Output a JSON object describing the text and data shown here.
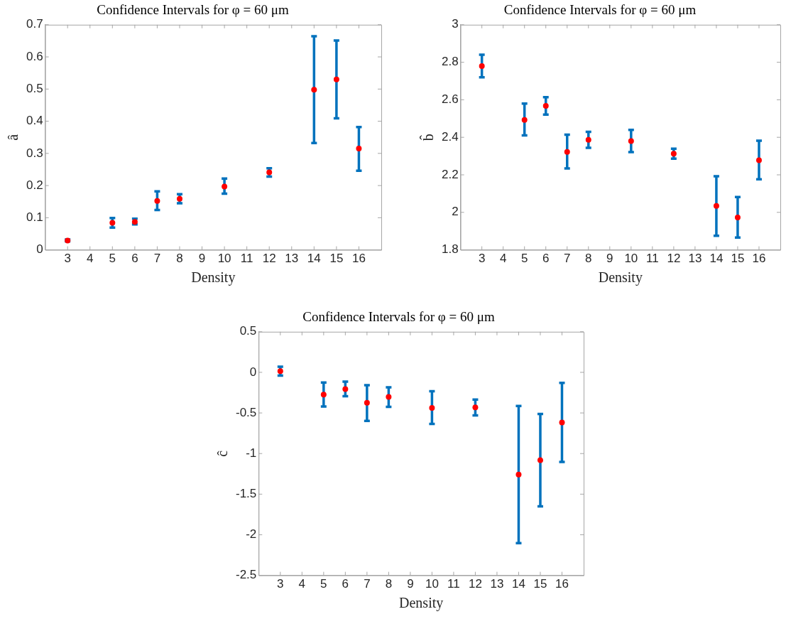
{
  "chart_data": [
    {
      "type": "scatter",
      "title": "Confidence Intervals for φ = 60 μm",
      "xlabel": "Density",
      "ylabel": "â",
      "xlim": [
        2,
        17
      ],
      "xticks": [
        3,
        4,
        5,
        6,
        7,
        8,
        9,
        10,
        11,
        12,
        13,
        14,
        15,
        16
      ],
      "ylim": [
        0,
        0.7
      ],
      "yticks": [
        0,
        0.1,
        0.2,
        0.3,
        0.4,
        0.5,
        0.6,
        0.7
      ],
      "grid": false,
      "legend": false,
      "marker": "circle",
      "series": [
        {
          "color": "#ff0000",
          "x": [
            3,
            5,
            6,
            7,
            8,
            10,
            12,
            14,
            15,
            16
          ],
          "values": [
            0.029,
            0.084,
            0.087,
            0.152,
            0.159,
            0.197,
            0.241,
            0.498,
            0.53,
            0.315
          ],
          "errors": [
            [
              0.027,
              0.032
            ],
            [
              0.069,
              0.099
            ],
            [
              0.079,
              0.097
            ],
            [
              0.124,
              0.182
            ],
            [
              0.145,
              0.173
            ],
            [
              0.175,
              0.222
            ],
            [
              0.228,
              0.254
            ],
            [
              0.332,
              0.664
            ],
            [
              0.409,
              0.651
            ],
            [
              0.246,
              0.382
            ]
          ]
        }
      ]
    },
    {
      "type": "scatter",
      "title": "Confidence Intervals for φ = 60 μm",
      "xlabel": "Density",
      "ylabel": "b̂",
      "xlim": [
        2,
        17
      ],
      "xticks": [
        3,
        4,
        5,
        6,
        7,
        8,
        9,
        10,
        11,
        12,
        13,
        14,
        15,
        16
      ],
      "ylim": [
        1.8,
        3
      ],
      "yticks": [
        1.8,
        2,
        2.2,
        2.4,
        2.6,
        2.8,
        3
      ],
      "grid": false,
      "legend": false,
      "marker": "circle",
      "series": [
        {
          "color": "#ff0000",
          "x": [
            3,
            5,
            6,
            7,
            8,
            10,
            12,
            14,
            15,
            16
          ],
          "values": [
            2.78,
            2.493,
            2.567,
            2.322,
            2.387,
            2.38,
            2.313,
            2.034,
            1.973,
            2.278
          ],
          "errors": [
            [
              2.72,
              2.84
            ],
            [
              2.41,
              2.58
            ],
            [
              2.521,
              2.614
            ],
            [
              2.234,
              2.414
            ],
            [
              2.344,
              2.429
            ],
            [
              2.321,
              2.44
            ],
            [
              2.286,
              2.339
            ],
            [
              1.875,
              2.192
            ],
            [
              1.866,
              2.082
            ],
            [
              2.176,
              2.382
            ]
          ]
        }
      ]
    },
    {
      "type": "scatter",
      "title": "Confidence Intervals for φ = 60 μm",
      "xlabel": "Density",
      "ylabel": "ĉ",
      "xlim": [
        2,
        17
      ],
      "xticks": [
        3,
        4,
        5,
        6,
        7,
        8,
        9,
        10,
        11,
        12,
        13,
        14,
        15,
        16
      ],
      "ylim": [
        -2.5,
        0.5
      ],
      "yticks": [
        -2.5,
        -2,
        -1.5,
        -1,
        -0.5,
        0,
        0.5
      ],
      "grid": false,
      "legend": false,
      "marker": "circle",
      "series": [
        {
          "color": "#ff0000",
          "x": [
            3,
            5,
            6,
            7,
            8,
            10,
            12,
            14,
            15,
            16
          ],
          "values": [
            0.015,
            -0.274,
            -0.206,
            -0.374,
            -0.303,
            -0.438,
            -0.432,
            -1.259,
            -1.082,
            -0.618
          ],
          "errors": [
            [
              -0.04,
              0.07
            ],
            [
              -0.42,
              -0.126
            ],
            [
              -0.294,
              -0.115
            ],
            [
              -0.597,
              -0.159
            ],
            [
              -0.426,
              -0.185
            ],
            [
              -0.635,
              -0.232
            ],
            [
              -0.529,
              -0.335
            ],
            [
              -2.103,
              -0.415
            ],
            [
              -1.65,
              -0.512
            ],
            [
              -1.103,
              -0.129
            ]
          ]
        }
      ]
    }
  ]
}
